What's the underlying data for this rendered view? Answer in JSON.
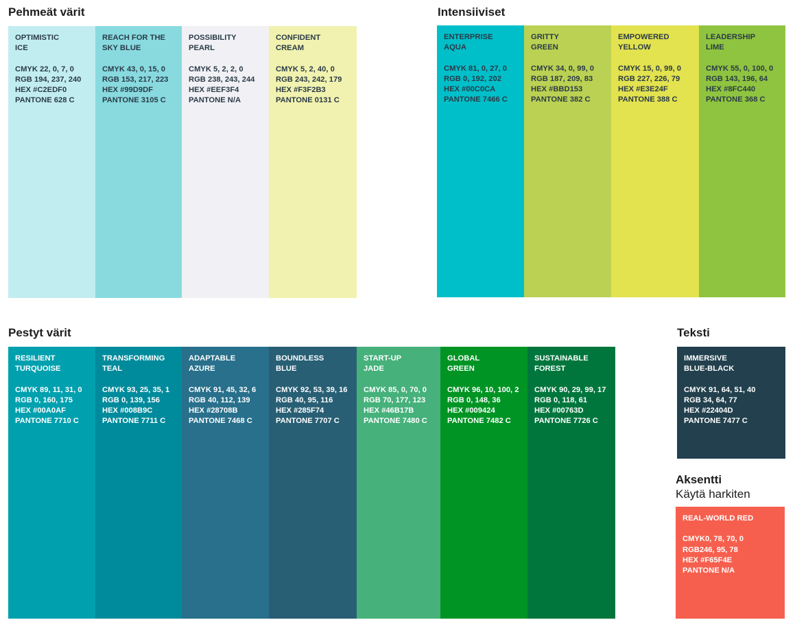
{
  "groups": [
    {
      "title": "Pehmeät värit",
      "text_color": "#2a3b47",
      "swatches": [
        {
          "name": [
            "OPTIMISTIC",
            "ICE"
          ],
          "specs": [
            "CMYK 22, 0, 7, 0",
            "RGB 194, 237, 240",
            "HEX #C2EDF0",
            "PANTONE 628 C"
          ],
          "color": "#C2EDF0"
        },
        {
          "name": [
            "REACH FOR THE",
            "SKY BLUE"
          ],
          "specs": [
            "CMYK 43, 0, 15, 0",
            "RGB 153, 217, 223",
            "HEX #99D9DF",
            "PANTONE 3105 C"
          ],
          "color": "#88DADF"
        },
        {
          "name": [
            "POSSIBILITY",
            "PEARL"
          ],
          "specs": [
            "CMYK 5, 2, 2, 0",
            "RGB 238, 243, 244",
            "HEX #EEF3F4",
            "PANTONE N/A"
          ],
          "color": "#F1F1F5"
        },
        {
          "name": [
            "CONFIDENT",
            "CREAM"
          ],
          "specs": [
            "CMYK 5, 2, 40, 0",
            "RGB 243, 242, 179",
            "HEX #F3F2B3",
            "PANTONE 0131 C"
          ],
          "color": "#F1F2AF"
        }
      ]
    },
    {
      "title": "Intensiiviset",
      "text_color": "#2a3b47",
      "swatches": [
        {
          "name": [
            "ENTERPRISE",
            "AQUA"
          ],
          "specs": [
            "CMYK 81, 0, 27, 0",
            "RGB 0, 192, 202",
            "HEX #00C0CA",
            "PANTONE 7466 C"
          ],
          "color": "#00BFC9"
        },
        {
          "name": [
            "GRITTY",
            "GREEN"
          ],
          "specs": [
            "CMYK 34, 0, 99, 0",
            "RGB 187, 209, 83",
            "HEX #BBD153",
            "PANTONE 382 C"
          ],
          "color": "#BBD153"
        },
        {
          "name": [
            "EMPOWERED",
            "YELLOW"
          ],
          "specs": [
            "CMYK 15, 0, 99, 0",
            "RGB 227, 226, 79",
            "HEX #E3E24F",
            "PANTONE 388 C"
          ],
          "color": "#E3E24F"
        },
        {
          "name": [
            "LEADERSHIP",
            "LIME"
          ],
          "specs": [
            "CMYK 55, 0, 100, 0",
            "RGB 143, 196, 64",
            "HEX #8FC440",
            "PANTONE 368 C"
          ],
          "color": "#8FC440"
        }
      ]
    },
    {
      "title": "Pestyt värit",
      "text_color": "#ffffff",
      "swatches": [
        {
          "name": [
            "RESILIENT",
            "TURQUOISE"
          ],
          "specs": [
            "CMYK 89, 11, 31, 0",
            "RGB 0, 160, 175",
            "HEX #00A0AF",
            "PANTONE 7710 C"
          ],
          "color": "#00A0AF"
        },
        {
          "name": [
            "TRANSFORMING",
            "TEAL"
          ],
          "specs": [
            "CMYK 93, 25, 35, 1",
            "RGB 0, 139, 156",
            "HEX #008B9C",
            "PANTONE 7711 C"
          ],
          "color": "#008B9C"
        },
        {
          "name": [
            "ADAPTABLE",
            "AZURE"
          ],
          "specs": [
            "CMYK 91, 45, 32, 6",
            "RGB 40, 112, 139",
            "HEX #28708B",
            "PANTONE 7468 C"
          ],
          "color": "#28708B"
        },
        {
          "name": [
            "BOUNDLESS",
            "BLUE"
          ],
          "specs": [
            "CMYK 92, 53, 39, 16",
            "RGB 40, 95, 116",
            "HEX #285F74",
            "PANTONE 7707 C"
          ],
          "color": "#285F74"
        },
        {
          "name": [
            "START-UP",
            "JADE"
          ],
          "specs": [
            "CMYK 85, 0, 70, 0",
            "RGB 70, 177, 123",
            "HEX #46B17B",
            "PANTONE 7480 C"
          ],
          "color": "#46B17B"
        },
        {
          "name": [
            "GLOBAL",
            "GREEN"
          ],
          "specs": [
            "CMYK 96, 10, 100, 2",
            "RGB 0, 148, 36",
            "HEX #009424",
            "PANTONE 7482 C"
          ],
          "color": "#009424"
        },
        {
          "name": [
            "SUSTAINABLE",
            "FOREST"
          ],
          "specs": [
            "CMYK 90, 29, 99, 17",
            "RGB 0, 118, 61",
            "HEX #00763D",
            "PANTONE 7726 C"
          ],
          "color": "#00763D"
        }
      ]
    },
    {
      "title": "Teksti",
      "text_color": "#ffffff",
      "swatches": [
        {
          "name": [
            "IMMERSIVE",
            "BLUE-BLACK"
          ],
          "specs": [
            "CMYK 91, 64, 51, 40",
            "RGB 34, 64, 77",
            "HEX #22404D",
            "PANTONE 7477 C"
          ],
          "color": "#22404D"
        }
      ]
    },
    {
      "title": "Aksentti",
      "subtitle": "Käytä harkiten",
      "text_color": "#ffffff",
      "swatches": [
        {
          "name": [
            "REAL-WORLD RED"
          ],
          "specs": [
            "CMYK0, 78, 70, 0",
            "RGB246, 95, 78",
            "HEX #F65F4E",
            "PANTONE N/A"
          ],
          "color": "#F65F4E"
        }
      ]
    }
  ]
}
